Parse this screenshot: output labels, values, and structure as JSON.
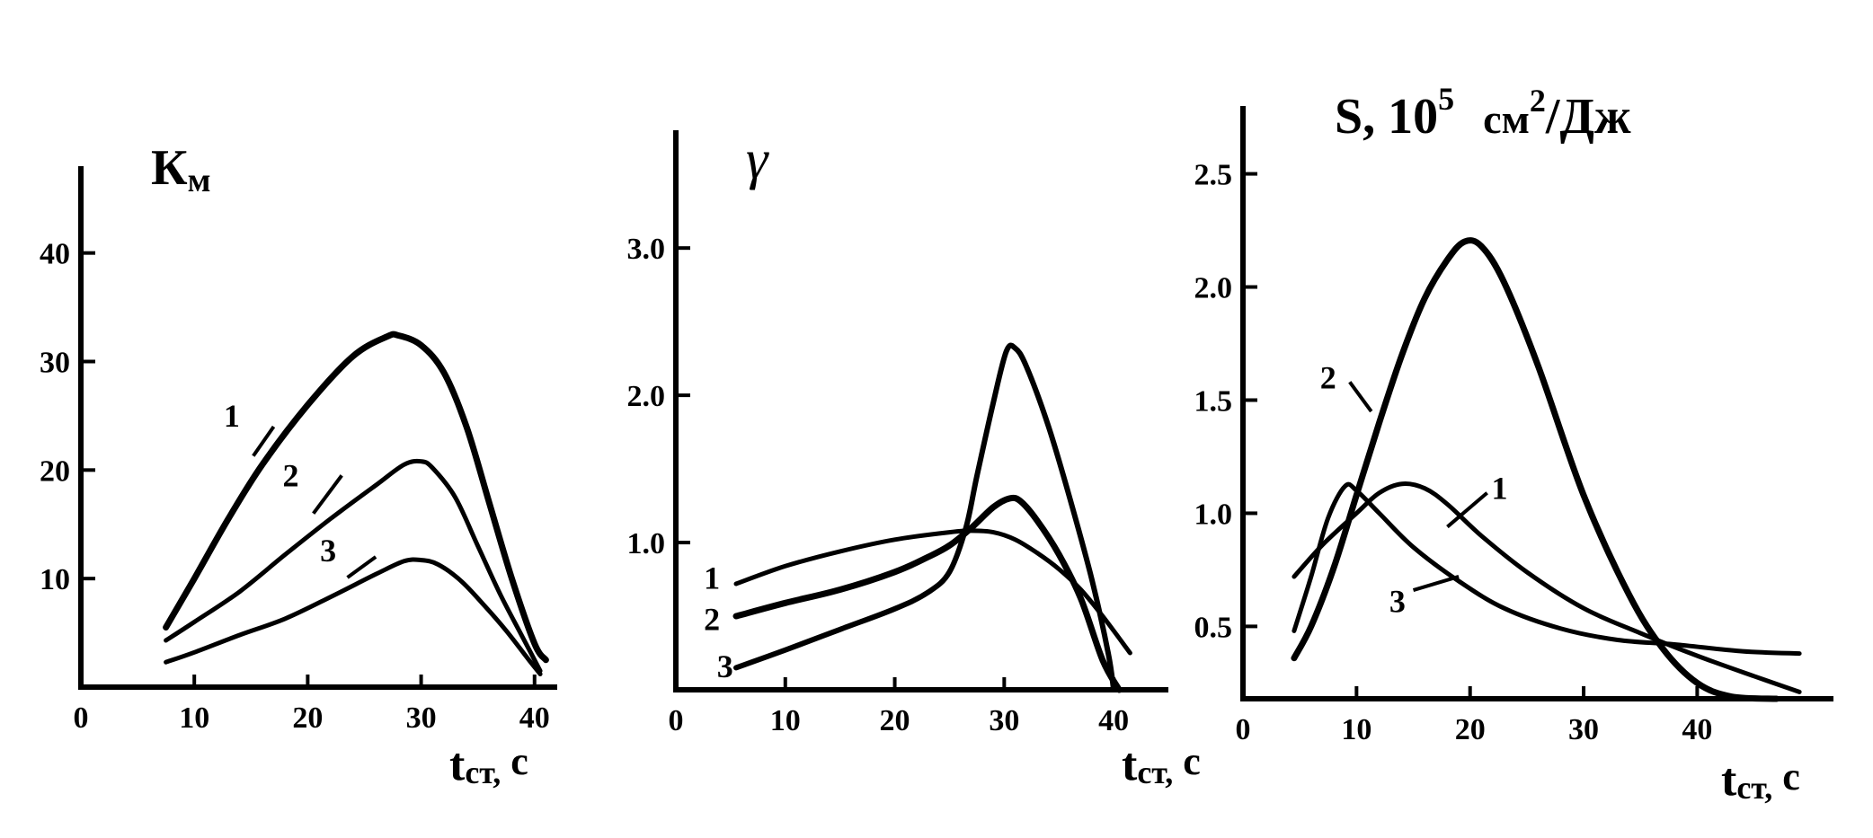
{
  "chart_data": [
    {
      "type": "line",
      "title": "Км",
      "title_main": "К",
      "title_sub": "м",
      "xlabel_main": "t",
      "xlabel_sub": "ст,",
      "xlabel_unit": "с",
      "xlim": [
        0,
        42
      ],
      "ylim": [
        0,
        48
      ],
      "x_ticks": [
        0,
        10,
        20,
        30,
        40
      ],
      "y_ticks": [
        10,
        20,
        30,
        40
      ],
      "x_tick_labels": [
        "0",
        "10",
        "20",
        "30",
        "40"
      ],
      "y_tick_labels": [
        "10",
        "20",
        "30",
        "40"
      ],
      "series": [
        {
          "label": "1",
          "stroke": 7,
          "points": [
            [
              7.5,
              5.5
            ],
            [
              10,
              10
            ],
            [
              13,
              15.5
            ],
            [
              16,
              20.5
            ],
            [
              20,
              26
            ],
            [
              24,
              30.5
            ],
            [
              27,
              32.3
            ],
            [
              28,
              32.4
            ],
            [
              30,
              31.5
            ],
            [
              32,
              29
            ],
            [
              34,
              24
            ],
            [
              36,
              17
            ],
            [
              38,
              10
            ],
            [
              40,
              4
            ],
            [
              41,
              2.5
            ]
          ],
          "leader_from": [
            17,
            24
          ],
          "leader_to": [
            15.2,
            21.3
          ],
          "label_at": [
            13.3,
            25
          ]
        },
        {
          "label": "2",
          "stroke": 5,
          "points": [
            [
              7.5,
              4.3
            ],
            [
              10,
              6
            ],
            [
              14,
              8.8
            ],
            [
              18,
              12.2
            ],
            [
              22,
              15.5
            ],
            [
              26,
              18.6
            ],
            [
              28.5,
              20.5
            ],
            [
              30,
              20.8
            ],
            [
              31,
              20.2
            ],
            [
              33,
              17.5
            ],
            [
              35,
              13
            ],
            [
              37,
              8.5
            ],
            [
              39,
              4.5
            ],
            [
              40.5,
              1.5
            ]
          ],
          "leader_from": [
            23,
            19.5
          ],
          "leader_to": [
            20.5,
            16
          ],
          "label_at": [
            18.5,
            19.5
          ]
        },
        {
          "label": "3",
          "stroke": 5,
          "points": [
            [
              7.5,
              2.3
            ],
            [
              10,
              3.2
            ],
            [
              14,
              4.8
            ],
            [
              18,
              6.3
            ],
            [
              22,
              8.3
            ],
            [
              26,
              10.4
            ],
            [
              28.5,
              11.6
            ],
            [
              30,
              11.7
            ],
            [
              31.5,
              11.3
            ],
            [
              33.5,
              9.8
            ],
            [
              35.5,
              7.6
            ],
            [
              37.5,
              5.2
            ],
            [
              39.5,
              2.5
            ],
            [
              40.5,
              1.2
            ]
          ],
          "leader_from": [
            26,
            12
          ],
          "leader_to": [
            23.5,
            10.1
          ],
          "label_at": [
            21.8,
            12.6
          ]
        }
      ]
    },
    {
      "type": "line",
      "title": "γ",
      "xlabel_main": "t",
      "xlabel_sub": "ст,",
      "xlabel_unit": "с",
      "xlim": [
        0,
        45
      ],
      "ylim": [
        0,
        3.8
      ],
      "x_ticks": [
        0,
        10,
        20,
        30,
        40
      ],
      "y_ticks": [
        1.0,
        2.0,
        3.0
      ],
      "x_tick_labels": [
        "0",
        "10",
        "20",
        "30",
        "40"
      ],
      "y_tick_labels": [
        "1.0",
        "2.0",
        "3.0"
      ],
      "series": [
        {
          "label": "1",
          "stroke": 5,
          "points": [
            [
              5.5,
              0.72
            ],
            [
              10,
              0.84
            ],
            [
              15,
              0.94
            ],
            [
              20,
              1.02
            ],
            [
              25,
              1.07
            ],
            [
              27,
              1.08
            ],
            [
              29,
              1.07
            ],
            [
              31,
              1.02
            ],
            [
              33,
              0.93
            ],
            [
              35,
              0.82
            ],
            [
              37,
              0.68
            ],
            [
              39,
              0.5
            ],
            [
              41.5,
              0.25
            ]
          ],
          "label_at": [
            3.3,
            0.76
          ]
        },
        {
          "label": "2",
          "stroke": 7,
          "points": [
            [
              5.5,
              0.5
            ],
            [
              10,
              0.59
            ],
            [
              15,
              0.68
            ],
            [
              20,
              0.8
            ],
            [
              23,
              0.9
            ],
            [
              25,
              0.98
            ],
            [
              27,
              1.1
            ],
            [
              29,
              1.24
            ],
            [
              30.5,
              1.3
            ],
            [
              31.5,
              1.28
            ],
            [
              33,
              1.15
            ],
            [
              35,
              0.92
            ],
            [
              37,
              0.62
            ],
            [
              39,
              0.2
            ],
            [
              40.5,
              0.0
            ]
          ],
          "label_at": [
            3.3,
            0.48
          ]
        },
        {
          "label": "3",
          "stroke": 6,
          "points": [
            [
              5.5,
              0.15
            ],
            [
              10,
              0.27
            ],
            [
              15,
              0.41
            ],
            [
              20,
              0.55
            ],
            [
              23,
              0.66
            ],
            [
              25,
              0.8
            ],
            [
              26.5,
              1.1
            ],
            [
              27.5,
              1.45
            ],
            [
              29,
              1.95
            ],
            [
              30.2,
              2.3
            ],
            [
              31,
              2.32
            ],
            [
              32,
              2.2
            ],
            [
              34,
              1.8
            ],
            [
              36,
              1.3
            ],
            [
              38,
              0.75
            ],
            [
              39.5,
              0.25
            ],
            [
              40,
              0.0
            ]
          ],
          "label_at": [
            4.5,
            0.16
          ]
        }
      ]
    },
    {
      "type": "line",
      "title": "S, 10⁵ см²/Дж",
      "title_main": "S, 10",
      "title_exp": "5",
      "title_unit": "см",
      "title_unit_exp": "2",
      "title_unit_tail": "/Дж",
      "xlabel_main": "t",
      "xlabel_sub": "ст,",
      "xlabel_unit": "с",
      "xlim": [
        0,
        52
      ],
      "ylim": [
        0.18,
        2.8
      ],
      "x_ticks": [
        0,
        10,
        20,
        30,
        40
      ],
      "y_ticks": [
        0.5,
        1.0,
        1.5,
        2.0,
        2.5
      ],
      "x_tick_labels": [
        "0",
        "10",
        "20",
        "30",
        "40"
      ],
      "y_tick_labels": [
        "0.5",
        "1.0",
        "1.5",
        "2.0",
        "2.5"
      ],
      "series": [
        {
          "label": "1",
          "stroke": 5,
          "points": [
            [
              4.5,
              0.72
            ],
            [
              7,
              0.86
            ],
            [
              10,
              1.0
            ],
            [
              12,
              1.09
            ],
            [
              14,
              1.13
            ],
            [
              16,
              1.11
            ],
            [
              18,
              1.04
            ],
            [
              21,
              0.9
            ],
            [
              25,
              0.74
            ],
            [
              30,
              0.58
            ],
            [
              35,
              0.47
            ],
            [
              40,
              0.37
            ],
            [
              45,
              0.28
            ],
            [
              49,
              0.21
            ]
          ],
          "leader_from": [
            21.5,
            1.09
          ],
          "leader_to": [
            18,
            0.94
          ],
          "label_at": [
            22.6,
            1.11
          ]
        },
        {
          "label": "2",
          "stroke": 7,
          "points": [
            [
              4.5,
              0.36
            ],
            [
              6,
              0.5
            ],
            [
              8,
              0.76
            ],
            [
              10,
              1.08
            ],
            [
              12,
              1.4
            ],
            [
              14,
              1.7
            ],
            [
              16,
              1.95
            ],
            [
              18,
              2.12
            ],
            [
              19.5,
              2.2
            ],
            [
              21,
              2.18
            ],
            [
              23,
              2.02
            ],
            [
              26,
              1.65
            ],
            [
              30,
              1.08
            ],
            [
              34,
              0.64
            ],
            [
              37,
              0.4
            ],
            [
              40,
              0.25
            ],
            [
              43,
              0.19
            ],
            [
              47,
              0.18
            ]
          ],
          "leader_from": [
            11.3,
            1.45
          ],
          "leader_to": [
            9.4,
            1.58
          ],
          "label_at": [
            7.5,
            1.6
          ]
        },
        {
          "label": "3",
          "stroke": 5,
          "points": [
            [
              4.5,
              0.48
            ],
            [
              6,
              0.72
            ],
            [
              7.5,
              0.98
            ],
            [
              9,
              1.12
            ],
            [
              10,
              1.1
            ],
            [
              12,
              1.0
            ],
            [
              15,
              0.85
            ],
            [
              19,
              0.7
            ],
            [
              23,
              0.58
            ],
            [
              28,
              0.49
            ],
            [
              33,
              0.44
            ],
            [
              38,
              0.42
            ],
            [
              44,
              0.39
            ],
            [
              49,
              0.38
            ]
          ],
          "leader_from": [
            19,
            0.72
          ],
          "leader_to": [
            15,
            0.66
          ],
          "label_at": [
            13.6,
            0.61
          ]
        }
      ]
    }
  ]
}
